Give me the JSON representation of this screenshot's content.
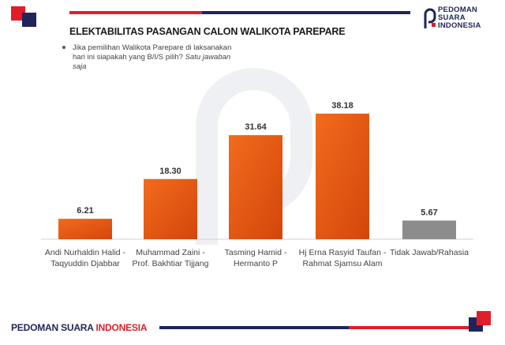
{
  "header": {
    "title": "ELEKTABILITAS PASANGAN CALON WALIKOTA PAREPARE",
    "question_plain": "Jika pemilihan Walikota Parepare di laksanakan hari ini siapakah yang B/I/S pilih?",
    "question_italic": "Satu jawaban saja"
  },
  "logo": {
    "line1": "PEDOMAN",
    "line2": "SUARA",
    "line3": "INDONESIA",
    "icon": "ps-logo-mark-icon"
  },
  "footer": {
    "brand_part1": "PEDOMAN SUARA",
    "brand_part2": "INDONESIA"
  },
  "colors": {
    "accent_red": "#e11d2a",
    "navy": "#1f2559",
    "bar_orange": "#ea5a0d",
    "bar_gray": "#8c8c8c"
  },
  "chart_data": {
    "type": "bar",
    "title": "ELEKTABILITAS PASANGAN CALON WALIKOTA PAREPARE",
    "categories": [
      [
        "Andi Nurhaldin Halid -",
        "Taqyuddin Djabbar"
      ],
      [
        "Muhammad Zaini -",
        "Prof. Bakhtiar Tijjang"
      ],
      [
        "Tasming Hamid -",
        "Hermanto P"
      ],
      [
        "Hj Erna Rasyid Taufan -",
        "Rahmat Sjamsu Alam"
      ],
      [
        "Tidak Jawab/Rahasia"
      ]
    ],
    "values": [
      6.21,
      18.3,
      31.64,
      38.18,
      5.67
    ],
    "value_labels": [
      "6.21",
      "18.30",
      "31.64",
      "38.18",
      "5.67"
    ],
    "bar_colors": [
      "#ea5a0d",
      "#ea5a0d",
      "#ea5a0d",
      "#ea5a0d",
      "#8c8c8c"
    ],
    "ylim": [
      0,
      42
    ],
    "xlabel": "",
    "ylabel": "",
    "grid": false,
    "legend": "none"
  }
}
